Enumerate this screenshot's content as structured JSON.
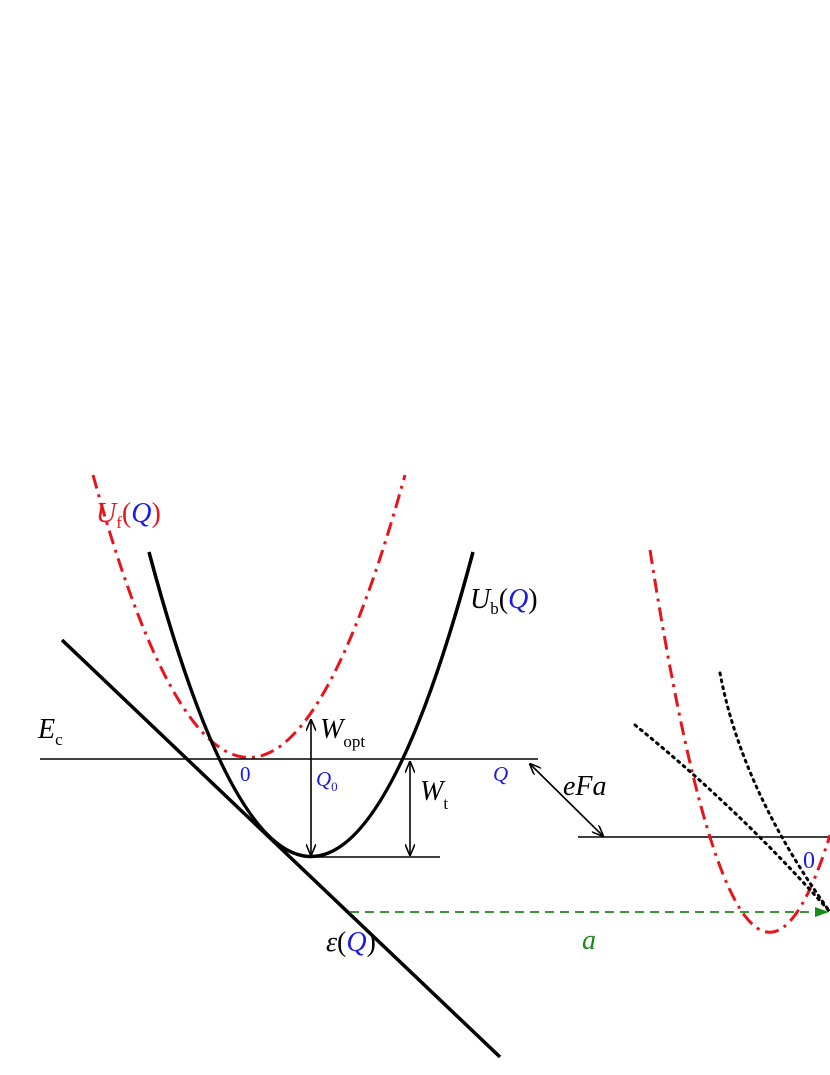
{
  "colors": {
    "black": "#000000",
    "red": "#e8141c",
    "blue": "#1a1ae6",
    "green": "#1a8a1a"
  },
  "labels": {
    "uf_main": "U",
    "uf_sub": "f",
    "uf_paren_open": "(",
    "uf_q": "Q",
    "uf_paren_close": ")",
    "ub_main": "U",
    "ub_sub": "b",
    "ub_paren_open": "(",
    "ub_q": "Q",
    "ub_paren_close": ")",
    "ec_main": "E",
    "ec_sub": "c",
    "wopt_main": "W",
    "wopt_sub": "opt",
    "wt_main": "W",
    "wt_sub": "t",
    "q0_main": "Q",
    "q0_sub": "0",
    "zero_left": "0",
    "q_axis": "Q",
    "efa": "eFa",
    "a": "a",
    "eps_main": "ε",
    "eps_paren_open": "(",
    "eps_q": "Q",
    "eps_paren_close": ")",
    "zero_right": "0"
  }
}
